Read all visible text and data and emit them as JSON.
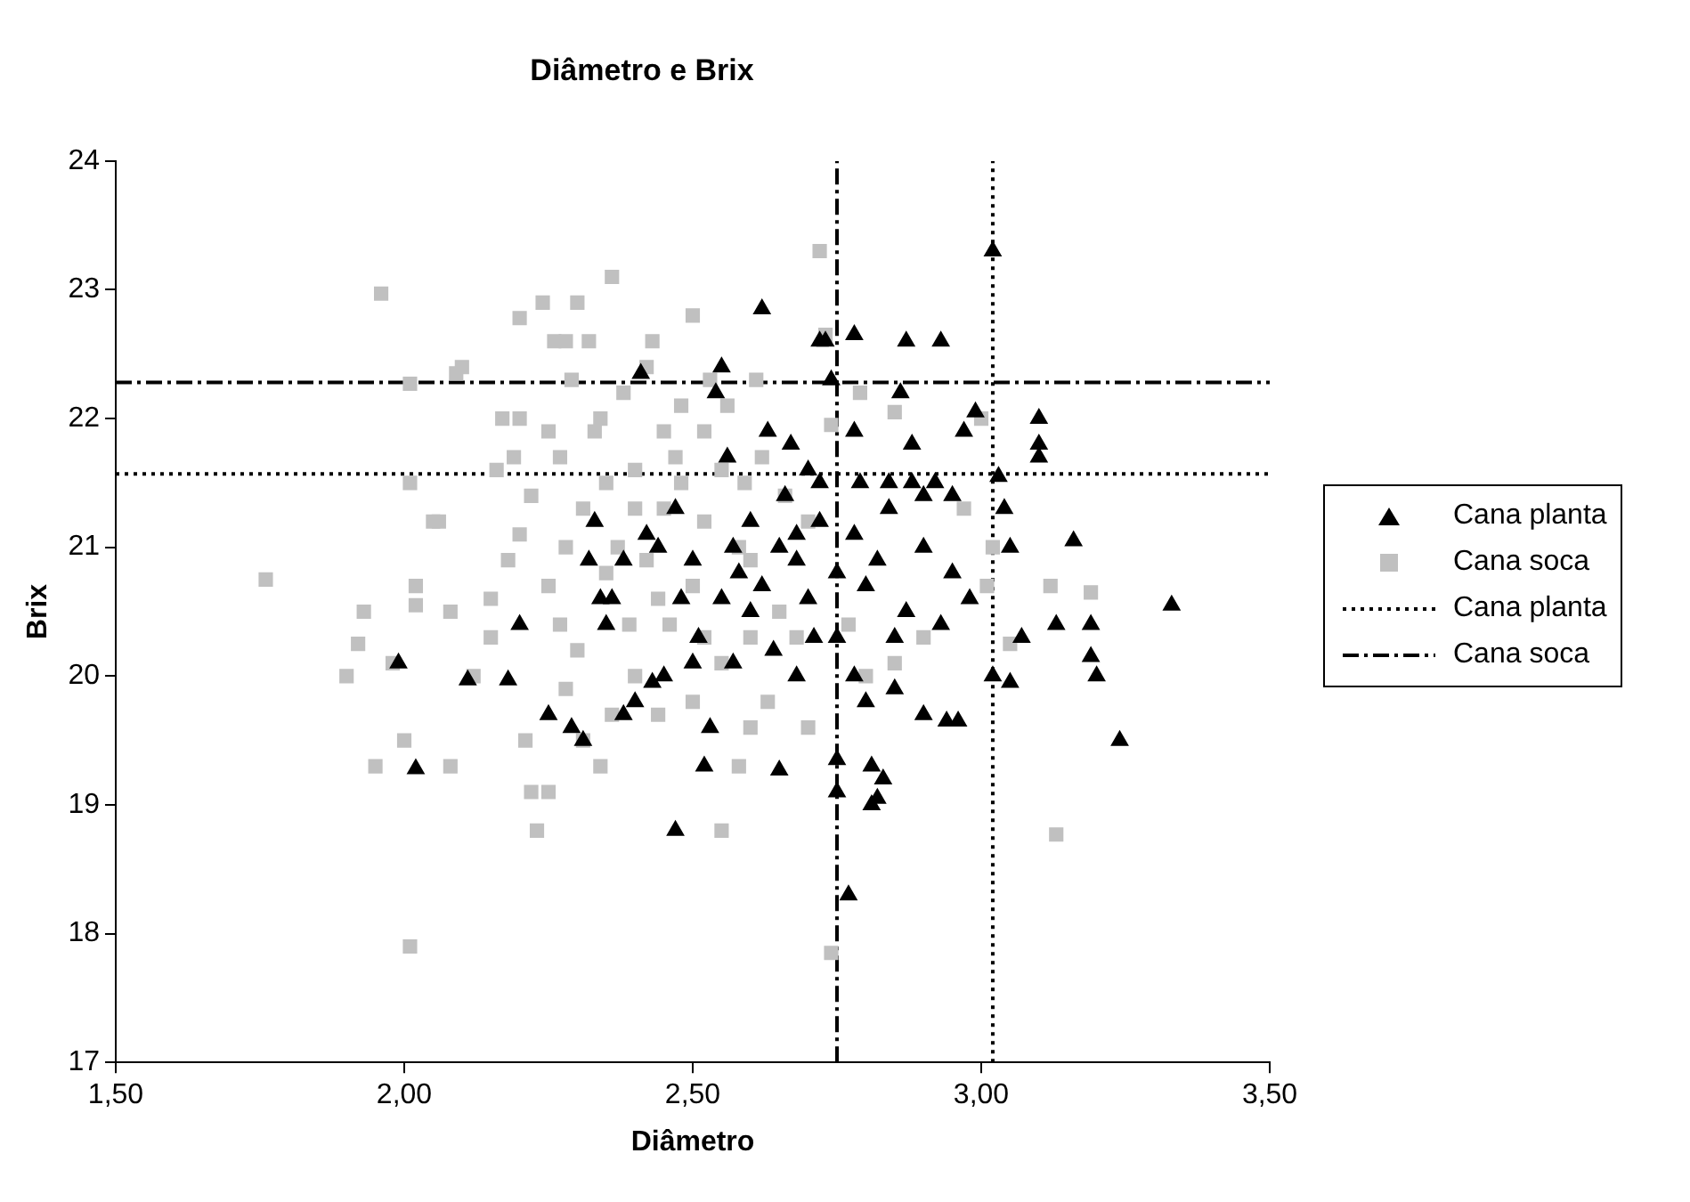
{
  "chart_data": {
    "type": "scatter",
    "title": "Diâmetro e Brix",
    "xlabel": "Diâmetro",
    "ylabel": "Brix",
    "xlim": [
      1.5,
      3.5
    ],
    "xticks": [
      {
        "value": 1.5,
        "label": "1,50"
      },
      {
        "value": 2,
        "label": "2,00"
      },
      {
        "value": 2.5,
        "label": "2,50"
      },
      {
        "value": 3,
        "label": "3,00"
      },
      {
        "value": 3.5,
        "label": "3,50"
      }
    ],
    "ylim": [
      17,
      24
    ],
    "yticks": [
      17,
      18,
      19,
      20,
      21,
      22,
      23,
      24
    ],
    "grid": false,
    "legend": "right",
    "series": [
      {
        "name": "Cana planta",
        "color": "#000000",
        "marker": "triangle",
        "x": [
          2.02,
          1.99,
          2.11,
          2.18,
          2.2,
          2.29,
          2.31,
          2.25,
          2.32,
          2.34,
          2.35,
          2.33,
          2.36,
          2.38,
          2.4,
          2.41,
          2.43,
          2.44,
          2.45,
          2.47,
          2.48,
          2.5,
          2.51,
          2.52,
          2.53,
          2.54,
          2.55,
          2.56,
          2.57,
          2.58,
          2.6,
          2.62,
          2.63,
          2.64,
          2.65,
          2.66,
          2.67,
          2.68,
          2.7,
          2.71,
          2.72,
          2.73,
          2.74,
          2.75,
          2.75,
          2.75,
          2.77,
          2.78,
          2.78,
          2.79,
          2.8,
          2.81,
          2.81,
          2.82,
          2.83,
          2.84,
          2.86,
          2.87,
          2.88,
          2.9,
          2.93,
          2.92,
          2.94,
          2.96,
          2.97,
          2.99,
          3.02,
          3.03,
          3.04,
          3.05,
          3.1,
          3.1,
          3.1,
          3.07,
          3.02,
          3.05,
          3.13,
          3.19,
          3.19,
          3.2,
          3.16,
          3.24,
          3.33,
          2.98,
          2.95,
          2.9,
          2.85,
          2.8,
          2.78,
          2.75,
          2.72,
          2.7,
          2.68,
          2.62,
          2.6,
          2.65,
          2.82,
          2.87,
          2.93,
          2.78,
          2.85,
          2.9,
          2.84,
          2.88,
          2.95,
          2.72,
          2.68,
          2.55,
          2.5,
          2.57,
          2.42,
          2.38,
          2.47
        ],
        "values": [
          19.28,
          20.1,
          19.97,
          19.97,
          20.4,
          19.6,
          19.5,
          19.7,
          20.9,
          20.6,
          20.4,
          21.2,
          20.6,
          19.7,
          19.8,
          22.35,
          19.95,
          21.0,
          20.0,
          18.8,
          20.6,
          20.1,
          20.3,
          19.3,
          19.6,
          22.2,
          22.4,
          21.7,
          21.0,
          20.8,
          20.5,
          22.85,
          21.9,
          20.2,
          19.27,
          21.4,
          21.8,
          20.0,
          21.6,
          20.3,
          22.6,
          22.6,
          22.3,
          19.1,
          20.3,
          19.35,
          18.3,
          22.65,
          21.9,
          21.5,
          19.8,
          19.3,
          19.0,
          19.05,
          19.2,
          21.3,
          22.2,
          22.6,
          21.8,
          21.4,
          22.6,
          21.5,
          19.65,
          19.65,
          21.9,
          22.05,
          23.3,
          21.55,
          21.3,
          21.0,
          22.0,
          21.8,
          21.7,
          20.3,
          20.0,
          19.95,
          20.4,
          20.4,
          20.15,
          20.0,
          21.05,
          19.5,
          20.55,
          20.6,
          20.8,
          21.0,
          20.3,
          20.7,
          21.1,
          20.8,
          21.2,
          20.6,
          20.9,
          20.7,
          21.2,
          21.0,
          20.9,
          20.5,
          20.4,
          20.0,
          19.9,
          19.7,
          21.5,
          21.5,
          21.4,
          21.5,
          21.1,
          20.6,
          20.9,
          20.1,
          21.1,
          20.9,
          21.3
        ]
      },
      {
        "name": "Cana soca",
        "color": "#c0c0c0",
        "marker": "square",
        "x": [
          1.76,
          1.9,
          1.92,
          1.93,
          1.95,
          1.96,
          1.98,
          2.0,
          2.01,
          2.01,
          2.01,
          2.02,
          2.02,
          2.05,
          2.06,
          2.08,
          2.09,
          2.1,
          2.12,
          2.15,
          2.16,
          2.17,
          2.19,
          2.2,
          2.2,
          2.21,
          2.22,
          2.23,
          2.24,
          2.25,
          2.25,
          2.26,
          2.28,
          2.3,
          2.32,
          2.36,
          2.31,
          2.34,
          2.39,
          2.42,
          2.44,
          2.48,
          2.5,
          2.55,
          2.58,
          2.6,
          2.72,
          2.73,
          2.74,
          2.74,
          2.79,
          2.85,
          2.85,
          2.97,
          3.0,
          3.02,
          3.05,
          3.12,
          3.19,
          3.13,
          3.01,
          2.61,
          2.58,
          2.4,
          2.5,
          2.45,
          2.35,
          2.28,
          2.3,
          2.27,
          2.25,
          2.2,
          2.15,
          2.35,
          2.4,
          2.52,
          2.55,
          2.6,
          2.65,
          2.7,
          2.68,
          2.62,
          2.33,
          2.38,
          2.45,
          2.52,
          2.56,
          2.46,
          2.42,
          2.31,
          2.28,
          2.36,
          2.5,
          2.63,
          2.7,
          2.77,
          2.8,
          2.9,
          2.66,
          2.59,
          2.48,
          2.22,
          2.18,
          2.08,
          2.27,
          2.4,
          2.52,
          2.6,
          2.55,
          2.44,
          2.37,
          2.29,
          2.34,
          2.43,
          2.53,
          2.47
        ],
        "values": [
          20.75,
          20.0,
          20.25,
          20.5,
          19.3,
          22.97,
          20.1,
          19.5,
          17.9,
          22.27,
          21.5,
          20.7,
          20.55,
          21.2,
          21.2,
          19.3,
          22.35,
          22.4,
          20.0,
          20.3,
          21.6,
          22.0,
          21.7,
          22.0,
          22.78,
          19.5,
          19.1,
          18.8,
          22.9,
          19.1,
          21.9,
          22.6,
          22.6,
          22.9,
          22.6,
          23.1,
          19.5,
          19.3,
          20.4,
          22.4,
          19.7,
          21.5,
          22.8,
          18.8,
          19.3,
          19.6,
          23.3,
          22.65,
          21.95,
          17.85,
          22.2,
          22.05,
          20.1,
          21.3,
          22.0,
          21.0,
          20.25,
          20.7,
          20.65,
          18.77,
          20.7,
          22.3,
          21.0,
          21.3,
          20.7,
          21.9,
          21.5,
          21.0,
          20.2,
          20.4,
          20.7,
          21.1,
          20.6,
          20.8,
          20.0,
          20.3,
          21.6,
          20.9,
          20.5,
          21.2,
          20.3,
          21.7,
          21.9,
          22.2,
          21.3,
          21.9,
          22.1,
          20.4,
          20.9,
          21.3,
          19.9,
          19.7,
          19.8,
          19.8,
          19.6,
          20.4,
          20.0,
          20.3,
          21.4,
          21.5,
          22.1,
          21.4,
          20.9,
          20.5,
          21.7,
          21.6,
          21.2,
          20.3,
          20.1,
          20.6,
          21.0,
          22.3,
          22.0,
          22.6,
          22.3,
          21.7
        ]
      },
      {
        "name": "Cana planta",
        "type": "line",
        "color": "#000000",
        "marker": "none",
        "line_style": "dotted",
        "x": [
          3.02,
          3.02
        ],
        "values": [
          17,
          24
        ]
      },
      {
        "name": "Cana soca",
        "type": "line",
        "color": "#000000",
        "marker": "none",
        "line_style": "dashed",
        "x": [
          2.75,
          2.75
        ],
        "values": [
          17,
          24
        ]
      },
      {
        "type": "line",
        "color": "#000000",
        "marker": "none",
        "line_style": "dotted",
        "x": [
          1.5,
          3.5
        ],
        "values": [
          21.57,
          21.57
        ]
      },
      {
        "type": "line",
        "color": "#000000",
        "marker": "none",
        "line_style": "dashed",
        "x": [
          1.5,
          3.5
        ],
        "values": [
          22.28,
          22.28
        ]
      }
    ]
  }
}
